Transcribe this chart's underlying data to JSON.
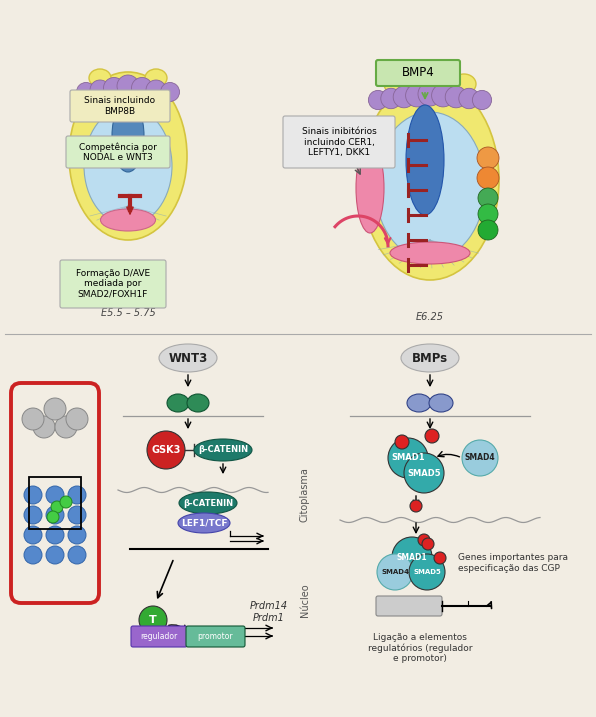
{
  "bg_color": "#f2ede3",
  "fig_width": 5.96,
  "fig_height": 7.17,
  "top_left_embryo": {
    "label_e": "E5.5 – 5.75",
    "box1_text": "Sinais incluindo\nBMP8B",
    "box2_text": "Competência por\nNODAL e WNT3",
    "box3_text": "Formação D/AVE\nmediada por\nSMAD2/FOXH1F",
    "box1_color": "#f0ecc0",
    "box2_color": "#d8efc8",
    "box3_color": "#d8efc8"
  },
  "top_right_embryo": {
    "label_e": "E6.25",
    "bmp4_box_text": "BMP4",
    "inhibit_box_text": "Sinais inibitórios\nincluindo CER1,\nLEFTY1, DKK1",
    "bmp4_color": "#c8e6b0",
    "inhibit_color": "#e8e8e8"
  },
  "wnt3_pathway": {
    "title": "WNT3",
    "receptor_color": "#2e8b57",
    "gsk3_color": "#cc2222",
    "gsk3_label": "GSK3",
    "bcatenin_cyto_color": "#1e7a6a",
    "bcatenin_cyto_label": "β-CATENIN",
    "bcatenin_nuc_color": "#1e7a6a",
    "bcatenin_nuc_label": "β-CATENIN",
    "lef1_color": "#7777cc",
    "lef1_label": "LEF1/TCF",
    "t_circle_color": "#33aa33",
    "t_label": "T",
    "regulator_color": "#9966cc",
    "regulator_label": "regulador",
    "promotor_color": "#66bb99",
    "promotor_label": "promotor",
    "prdm_text": "Prdm14\nPrdm1"
  },
  "bmp_pathway": {
    "title": "BMPs",
    "receptor_color": "#8899cc",
    "smad1_color": "#33aaaa",
    "smad1_label": "SMAD1",
    "smad4_color": "#99ccdd",
    "smad4_label": "SMAD4",
    "smad5_color": "#33aaaa",
    "smad5_label": "SMAD5",
    "phospho_color": "#dd2222",
    "cytoplasm_label": "Citoplasma",
    "nucleus_label": "Núcleo",
    "gene_box_color": "#cccccc",
    "arrow_text": "Genes importantes para\nespecificação das CGP",
    "ligacao_text": "Ligação a elementos\nregulatórios (regulador\ne promotor)"
  },
  "embryo_schematic": {
    "outer_color": "#cc2222",
    "body_color": "#5588cc",
    "gray_color": "#aaaaaa"
  }
}
